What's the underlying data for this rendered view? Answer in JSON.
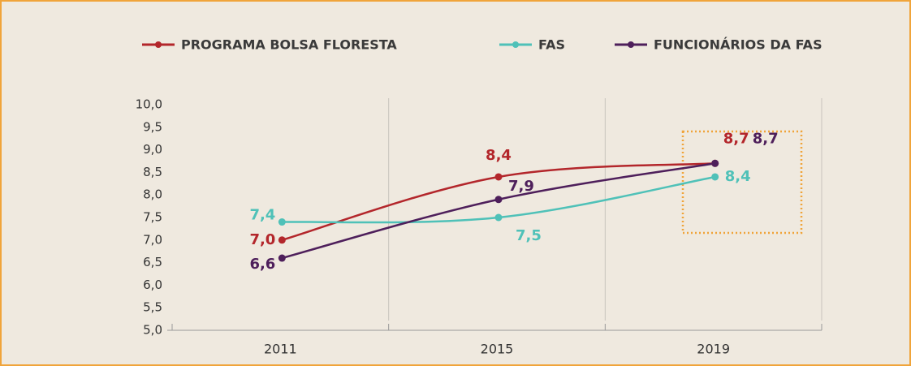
{
  "chart_data": {
    "type": "line",
    "categories": [
      "2011",
      "2015",
      "2019"
    ],
    "series": [
      {
        "name": "PROGRAMA BOLSA FLORESTA",
        "color": "#b3262b",
        "values": [
          7.0,
          8.4,
          8.7
        ],
        "value_labels": [
          "7,0",
          "8,4",
          "8,7"
        ]
      },
      {
        "name": "FAS",
        "color": "#4fc1b8",
        "values": [
          7.4,
          7.5,
          8.4
        ],
        "value_labels": [
          "7,4",
          "7,5",
          "8,4"
        ]
      },
      {
        "name": "FUNCIONÁRIOS DA FAS",
        "color": "#4e1f5b",
        "values": [
          6.6,
          7.9,
          8.7
        ],
        "value_labels": [
          "6,6",
          "7,9",
          "8,7"
        ]
      }
    ],
    "ylim": [
      5.0,
      10.0
    ],
    "yticks": [
      {
        "value": 5.0,
        "label": "5,0"
      },
      {
        "value": 5.5,
        "label": "5,5"
      },
      {
        "value": 6.0,
        "label": "6,0"
      },
      {
        "value": 6.5,
        "label": "6,5"
      },
      {
        "value": 7.0,
        "label": "7,0"
      },
      {
        "value": 7.5,
        "label": "7,5"
      },
      {
        "value": 8.0,
        "label": "8,0"
      },
      {
        "value": 8.5,
        "label": "8,5"
      },
      {
        "value": 9.0,
        "label": "9,0"
      },
      {
        "value": 9.5,
        "label": "9,5"
      },
      {
        "value": 10.0,
        "label": "10,0"
      }
    ],
    "grid": true
  }
}
